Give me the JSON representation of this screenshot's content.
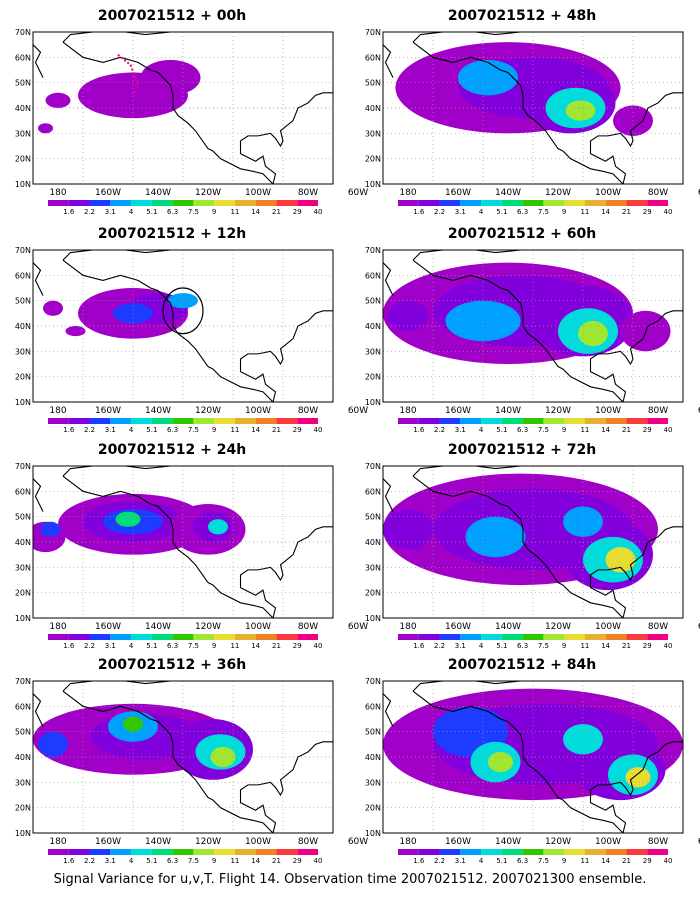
{
  "panels": [
    {
      "title": "2007021512 + 00h",
      "hotspots": [],
      "circle": false,
      "dotted_box": true
    },
    {
      "title": "2007021512 + 12h",
      "hotspots": [],
      "circle": true,
      "dotted_box": false
    },
    {
      "title": "2007021512 + 24h",
      "hotspots": [],
      "circle": false,
      "dotted_box": false
    },
    {
      "title": "2007021512 + 36h",
      "hotspots": [],
      "circle": false,
      "dotted_box": false
    },
    {
      "title": "2007021512 + 48h",
      "hotspots": [],
      "circle": false,
      "dotted_box": false
    },
    {
      "title": "2007021512 + 60h",
      "hotspots": [],
      "circle": false,
      "dotted_box": false
    },
    {
      "title": "2007021512 + 72h",
      "hotspots": [],
      "circle": false,
      "dotted_box": false
    },
    {
      "title": "2007021512 + 84h",
      "hotspots": [],
      "circle": false,
      "dotted_box": false
    }
  ],
  "axes": {
    "lat_labels": [
      "70N",
      "60N",
      "50N",
      "40N",
      "30N",
      "20N",
      "10N"
    ],
    "lon_labels": [
      "180",
      "160W",
      "140W",
      "120W",
      "100W",
      "80W",
      "60W"
    ]
  },
  "colorbar": {
    "labels": [
      "1.6",
      "2.2",
      "3.1",
      "4",
      "5.1",
      "6.3",
      "7.5",
      "9",
      "11",
      "14",
      "21",
      "29",
      "40"
    ],
    "colors": [
      "#a000c8",
      "#8200dc",
      "#1e3cff",
      "#00a0ff",
      "#00dcdc",
      "#00dc78",
      "#32c800",
      "#a0e632",
      "#e6dc32",
      "#e6af2d",
      "#f08228",
      "#fa3c3c",
      "#f00082"
    ]
  },
  "caption": "Signal Variance for u,v,T. Flight 14. Observation time 2007021512. 2007021300 ensemble."
}
